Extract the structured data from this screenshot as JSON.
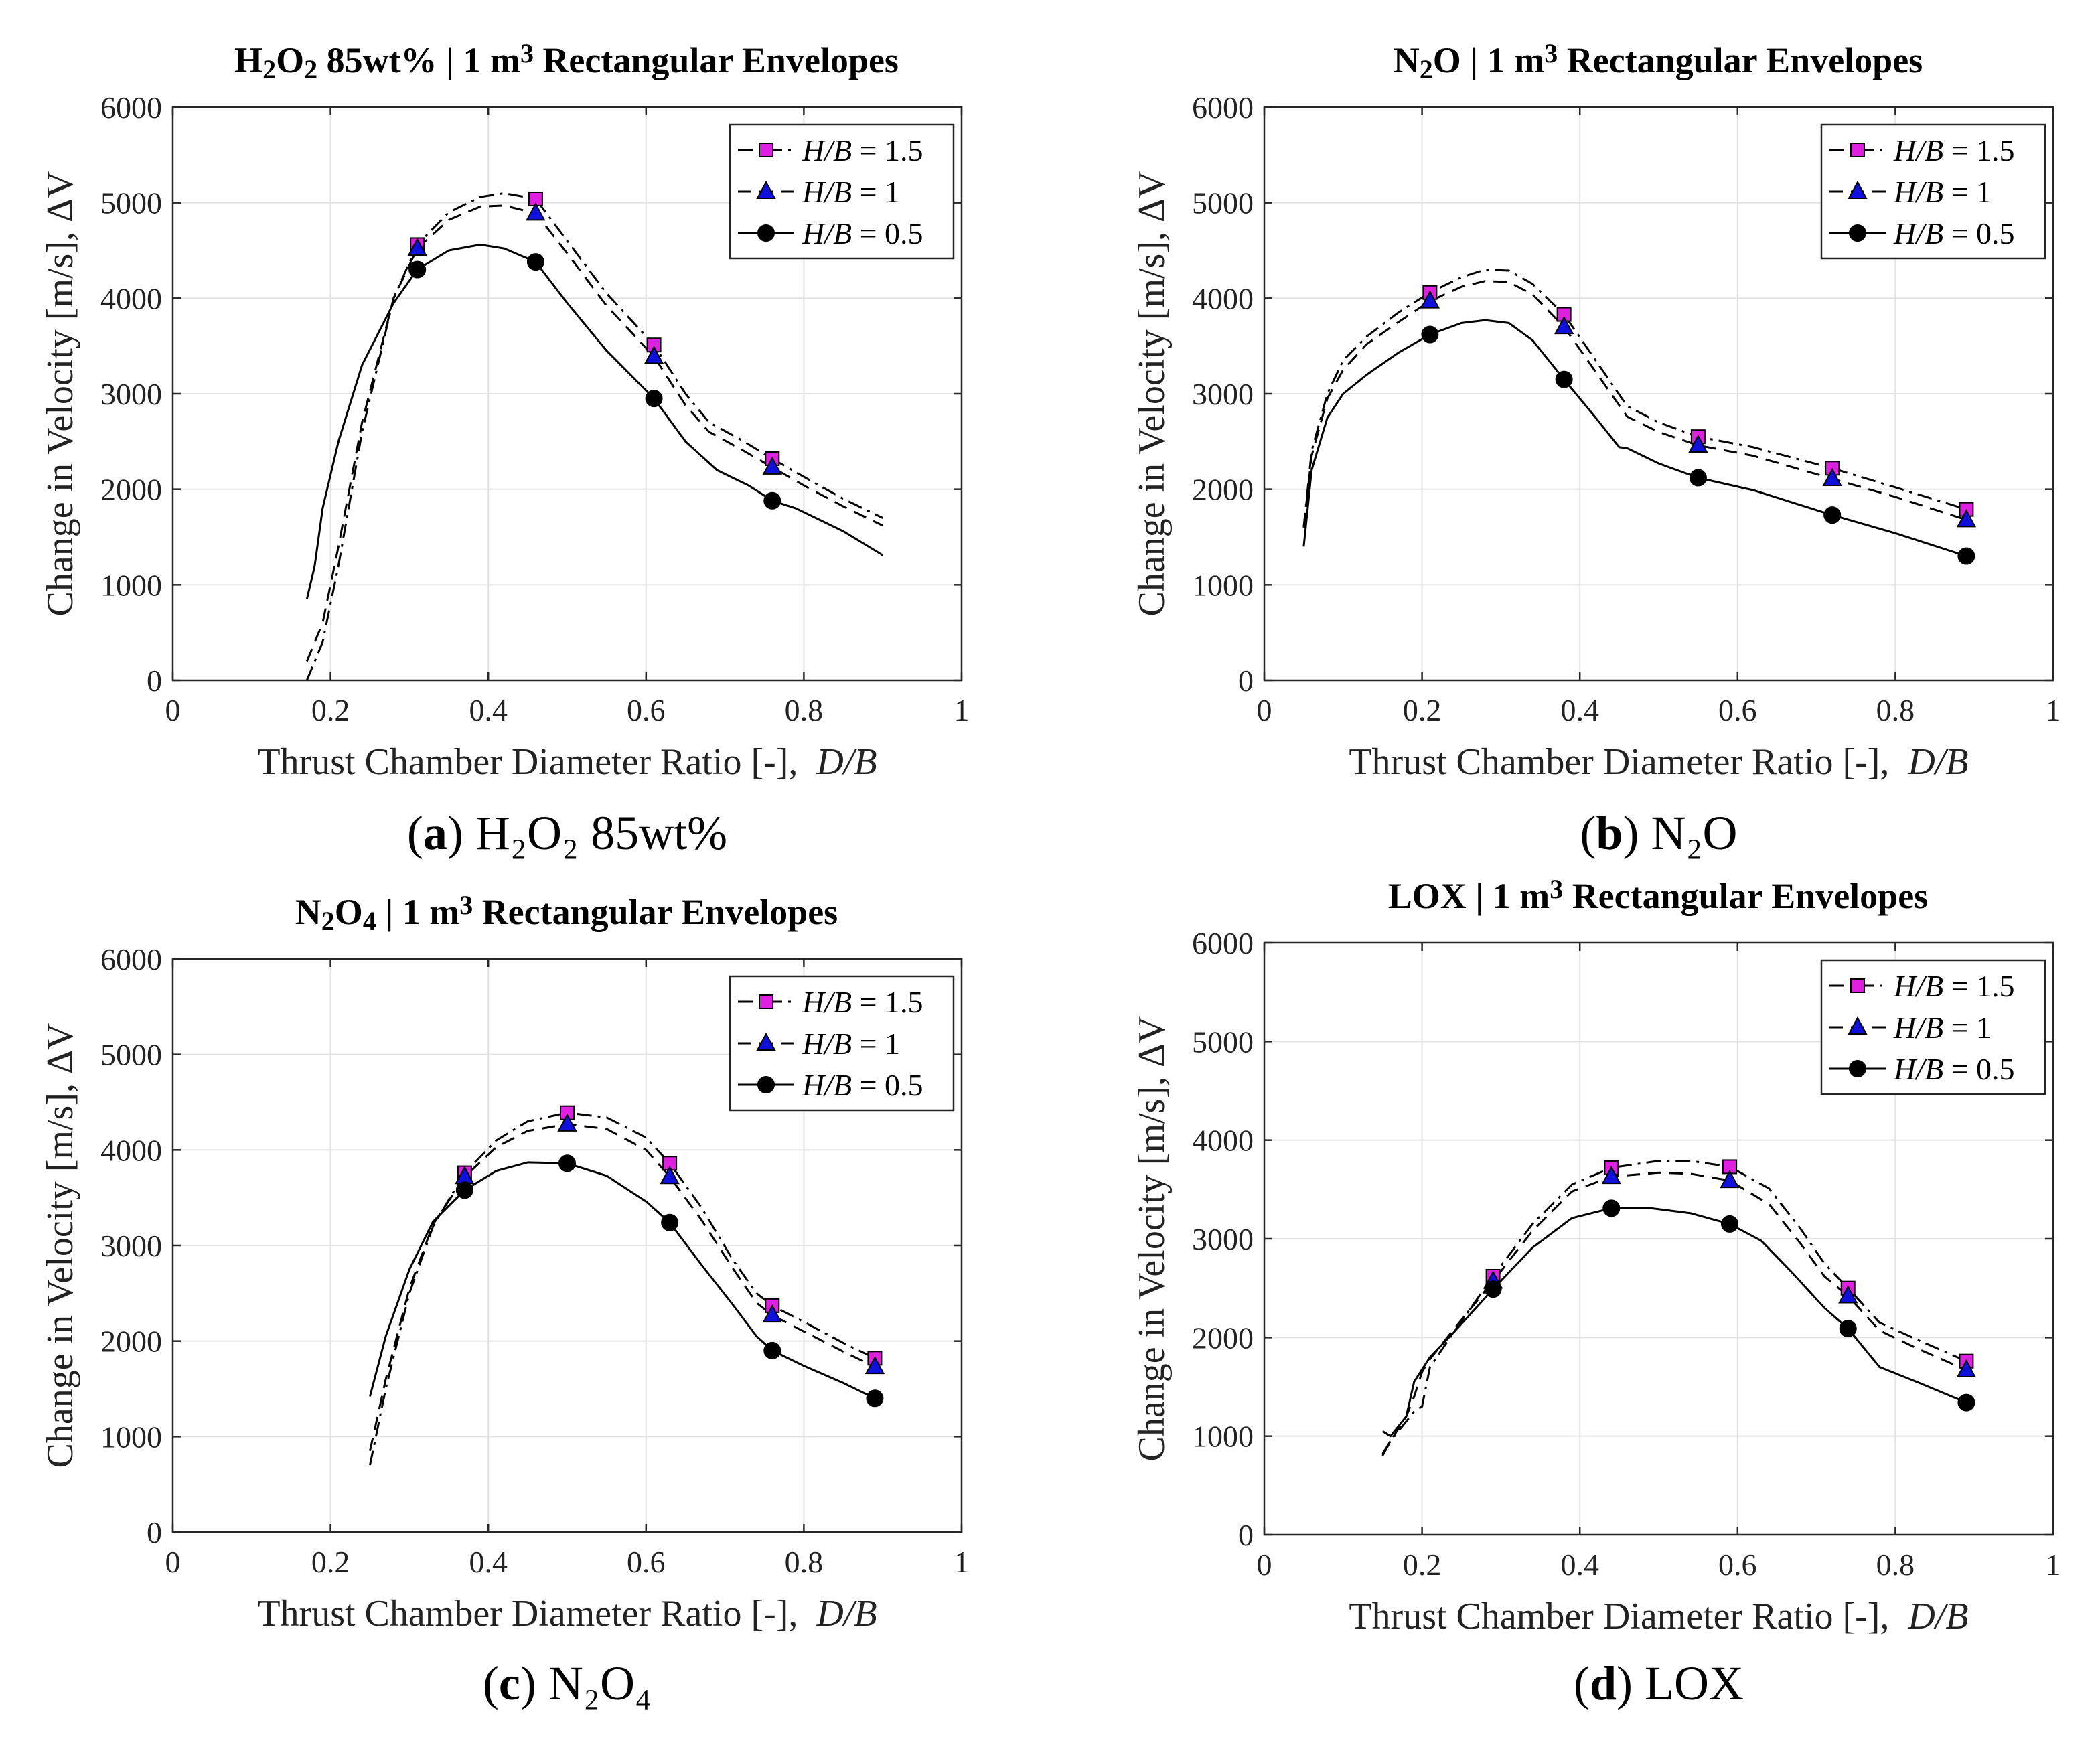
{
  "figure": {
    "axis_xlabel_text": "Thrust Chamber Diameter Ratio [-],",
    "axis_xlabel_var": "D/B",
    "axis_ylabel": "Change in Velocity [m/s],",
    "axis_ylabel_sym": "ΔV",
    "legend": [
      {
        "var": "H/B",
        "rest": " = 1.5",
        "marker": "square",
        "dash": "dashdot",
        "color": "#e020e0"
      },
      {
        "var": "H/B",
        "rest": " = 1",
        "marker": "triangle",
        "dash": "dashed",
        "color": "#1010dd"
      },
      {
        "var": "H/B",
        "rest": " = 0.5",
        "marker": "circle",
        "dash": "solid",
        "color": "#000000"
      }
    ]
  },
  "chart_data": [
    {
      "type": "line",
      "title": {
        "parts": [
          [
            "H",
            false
          ],
          [
            "2",
            true
          ],
          [
            "O",
            false
          ],
          [
            "2",
            true
          ],
          [
            " 85wt% | 1 m",
            false
          ],
          [
            "3",
            "sup"
          ],
          [
            " Rectangular Envelopes",
            false
          ]
        ]
      },
      "caption": {
        "letter": "a",
        "text": " H₂O₂ 85wt%"
      },
      "xlim": [
        0,
        1
      ],
      "ylim": [
        0,
        6000
      ],
      "xticks": [
        "0",
        "0.2",
        "0.4",
        "0.6",
        "0.8",
        "1"
      ],
      "yticks": [
        "0",
        "1000",
        "2000",
        "3000",
        "4000",
        "5000",
        "6000"
      ],
      "series": [
        {
          "name": "H/B = 1.5",
          "x": [
            0.17,
            0.19,
            0.21,
            0.24,
            0.28,
            0.31,
            0.35,
            0.39,
            0.42,
            0.46,
            0.5,
            0.55,
            0.61,
            0.65,
            0.68,
            0.72,
            0.76,
            0.8,
            0.85,
            0.9
          ],
          "y": [
            0,
            400,
            1200,
            2600,
            4000,
            4560,
            4900,
            5060,
            5100,
            5040,
            4600,
            4050,
            3510,
            3000,
            2700,
            2520,
            2320,
            2130,
            1900,
            1700
          ],
          "markers": [
            [
              0.31,
              4560
            ],
            [
              0.46,
              5040
            ],
            [
              0.61,
              3510
            ],
            [
              0.76,
              2320
            ]
          ]
        },
        {
          "name": "H/B = 1",
          "x": [
            0.17,
            0.19,
            0.21,
            0.24,
            0.28,
            0.31,
            0.35,
            0.39,
            0.42,
            0.46,
            0.5,
            0.55,
            0.61,
            0.65,
            0.68,
            0.72,
            0.76,
            0.8,
            0.85,
            0.9
          ],
          "y": [
            200,
            600,
            1400,
            2700,
            4000,
            4520,
            4820,
            4960,
            4970,
            4890,
            4470,
            3920,
            3390,
            2880,
            2600,
            2420,
            2230,
            2040,
            1820,
            1620
          ],
          "markers": [
            [
              0.31,
              4520
            ],
            [
              0.46,
              4890
            ],
            [
              0.61,
              3390
            ],
            [
              0.76,
              2230
            ]
          ]
        },
        {
          "name": "H/B = 0.5",
          "x": [
            0.17,
            0.18,
            0.19,
            0.21,
            0.24,
            0.28,
            0.31,
            0.35,
            0.39,
            0.42,
            0.46,
            0.5,
            0.55,
            0.61,
            0.65,
            0.69,
            0.73,
            0.76,
            0.79,
            0.85,
            0.9
          ],
          "y": [
            850,
            1200,
            1800,
            2500,
            3300,
            3950,
            4300,
            4500,
            4560,
            4520,
            4380,
            3950,
            3450,
            2950,
            2500,
            2200,
            2040,
            1880,
            1800,
            1560,
            1310
          ],
          "markers": [
            [
              0.31,
              4300
            ],
            [
              0.46,
              4380
            ],
            [
              0.61,
              2950
            ],
            [
              0.76,
              1880
            ]
          ]
        }
      ]
    },
    {
      "type": "line",
      "title": {
        "parts": [
          [
            "N",
            false
          ],
          [
            "2",
            true
          ],
          [
            "O | 1 m",
            false
          ],
          [
            "3",
            "sup"
          ],
          [
            " Rectangular Envelopes",
            false
          ]
        ]
      },
      "caption": {
        "letter": "b",
        "text": " N₂O"
      },
      "xlim": [
        0,
        1
      ],
      "ylim": [
        0,
        6000
      ],
      "xticks": [
        "0",
        "0.2",
        "0.4",
        "0.6",
        "0.8",
        "1"
      ],
      "yticks": [
        "0",
        "1000",
        "2000",
        "3000",
        "4000",
        "5000",
        "6000"
      ],
      "series": [
        {
          "name": "H/B = 1.5",
          "x": [
            0.05,
            0.06,
            0.08,
            0.1,
            0.13,
            0.17,
            0.21,
            0.25,
            0.28,
            0.31,
            0.34,
            0.38,
            0.42,
            0.46,
            0.5,
            0.55,
            0.62,
            0.72,
            0.8,
            0.89
          ],
          "y": [
            1600,
            2400,
            3000,
            3350,
            3600,
            3850,
            4060,
            4220,
            4300,
            4290,
            4150,
            3830,
            3350,
            2870,
            2700,
            2550,
            2440,
            2220,
            2020,
            1790
          ],
          "markers": [
            [
              0.21,
              4060
            ],
            [
              0.38,
              3830
            ],
            [
              0.55,
              2550
            ],
            [
              0.72,
              2220
            ],
            [
              0.89,
              1790
            ]
          ]
        },
        {
          "name": "H/B = 1",
          "x": [
            0.05,
            0.06,
            0.08,
            0.1,
            0.13,
            0.17,
            0.21,
            0.25,
            0.28,
            0.31,
            0.34,
            0.38,
            0.42,
            0.46,
            0.5,
            0.55,
            0.62,
            0.72,
            0.8,
            0.89
          ],
          "y": [
            1600,
            2350,
            2950,
            3250,
            3520,
            3750,
            3970,
            4120,
            4180,
            4170,
            4040,
            3700,
            3230,
            2760,
            2600,
            2460,
            2350,
            2110,
            1920,
            1680
          ],
          "markers": [
            [
              0.21,
              3970
            ],
            [
              0.38,
              3700
            ],
            [
              0.55,
              2460
            ],
            [
              0.72,
              2110
            ],
            [
              0.89,
              1680
            ]
          ]
        },
        {
          "name": "H/B = 0.5",
          "x": [
            0.05,
            0.06,
            0.08,
            0.1,
            0.13,
            0.17,
            0.21,
            0.25,
            0.28,
            0.31,
            0.34,
            0.38,
            0.42,
            0.45,
            0.46,
            0.5,
            0.55,
            0.62,
            0.72,
            0.8,
            0.89
          ],
          "y": [
            1400,
            2200,
            2750,
            3000,
            3200,
            3430,
            3620,
            3740,
            3770,
            3740,
            3560,
            3150,
            2750,
            2440,
            2430,
            2270,
            2120,
            1990,
            1730,
            1540,
            1300
          ],
          "markers": [
            [
              0.21,
              3620
            ],
            [
              0.38,
              3150
            ],
            [
              0.55,
              2120
            ],
            [
              0.72,
              1730
            ],
            [
              0.89,
              1300
            ]
          ]
        }
      ]
    },
    {
      "type": "line",
      "title": {
        "parts": [
          [
            "N",
            false
          ],
          [
            "2",
            true
          ],
          [
            "O",
            false
          ],
          [
            "4",
            true
          ],
          [
            " | 1 m",
            false
          ],
          [
            "3",
            "sup"
          ],
          [
            " Rectangular Envelopes",
            false
          ]
        ]
      },
      "caption": {
        "letter": "c",
        "text": " N₂O₄"
      },
      "xlim": [
        0,
        1
      ],
      "ylim": [
        0,
        6000
      ],
      "xticks": [
        "0",
        "0.2",
        "0.4",
        "0.6",
        "0.8",
        "1"
      ],
      "yticks": [
        "0",
        "1000",
        "2000",
        "3000",
        "4000",
        "5000",
        "6000"
      ],
      "series": [
        {
          "name": "H/B = 1.5",
          "x": [
            0.25,
            0.27,
            0.3,
            0.33,
            0.37,
            0.41,
            0.45,
            0.5,
            0.55,
            0.6,
            0.63,
            0.67,
            0.71,
            0.74,
            0.76,
            0.8,
            0.85,
            0.89
          ],
          "y": [
            700,
            1500,
            2500,
            3200,
            3760,
            4100,
            4300,
            4390,
            4340,
            4130,
            3860,
            3400,
            2850,
            2500,
            2370,
            2200,
            1980,
            1820
          ],
          "markers": [
            [
              0.37,
              3760
            ],
            [
              0.5,
              4390
            ],
            [
              0.63,
              3860
            ],
            [
              0.76,
              2370
            ],
            [
              0.89,
              1820
            ]
          ]
        },
        {
          "name": "H/B = 1",
          "x": [
            0.25,
            0.27,
            0.3,
            0.33,
            0.37,
            0.41,
            0.45,
            0.5,
            0.55,
            0.6,
            0.63,
            0.67,
            0.71,
            0.74,
            0.76,
            0.8,
            0.85,
            0.89
          ],
          "y": [
            850,
            1600,
            2550,
            3220,
            3720,
            4030,
            4200,
            4270,
            4220,
            4000,
            3720,
            3270,
            2760,
            2400,
            2270,
            2100,
            1890,
            1730
          ],
          "markers": [
            [
              0.37,
              3720
            ],
            [
              0.5,
              4270
            ],
            [
              0.63,
              3720
            ],
            [
              0.76,
              2270
            ],
            [
              0.89,
              1730
            ]
          ]
        },
        {
          "name": "H/B = 0.5",
          "x": [
            0.25,
            0.27,
            0.3,
            0.33,
            0.37,
            0.41,
            0.45,
            0.5,
            0.55,
            0.6,
            0.63,
            0.67,
            0.71,
            0.74,
            0.76,
            0.8,
            0.85,
            0.89
          ],
          "y": [
            1420,
            2050,
            2750,
            3250,
            3580,
            3780,
            3870,
            3860,
            3730,
            3460,
            3240,
            2800,
            2380,
            2050,
            1900,
            1740,
            1560,
            1400
          ],
          "markers": [
            [
              0.37,
              3580
            ],
            [
              0.5,
              3860
            ],
            [
              0.63,
              3240
            ],
            [
              0.76,
              1900
            ],
            [
              0.89,
              1400
            ]
          ]
        }
      ]
    },
    {
      "type": "line",
      "title": {
        "parts": [
          [
            "LOX | 1 m",
            false
          ],
          [
            "3",
            "sup"
          ],
          [
            " Rectangular Envelopes",
            false
          ]
        ]
      },
      "caption": {
        "letter": "d",
        "text": " LOX"
      },
      "xlim": [
        0,
        1
      ],
      "ylim": [
        0,
        6000
      ],
      "xticks": [
        "0",
        "0.2",
        "0.4",
        "0.6",
        "0.8",
        "1"
      ],
      "yticks": [
        "0",
        "1000",
        "2000",
        "3000",
        "4000",
        "5000",
        "6000"
      ],
      "series": [
        {
          "name": "H/B = 1.5",
          "x": [
            0.15,
            0.16,
            0.18,
            0.19,
            0.2,
            0.21,
            0.24,
            0.29,
            0.34,
            0.39,
            0.44,
            0.5,
            0.54,
            0.59,
            0.64,
            0.68,
            0.71,
            0.74,
            0.78,
            0.83,
            0.89
          ],
          "y": [
            820,
            950,
            1150,
            1250,
            1300,
            1700,
            2050,
            2620,
            3150,
            3550,
            3720,
            3790,
            3790,
            3730,
            3510,
            3100,
            2750,
            2500,
            2150,
            1970,
            1760
          ],
          "markers": [
            [
              0.29,
              2620
            ],
            [
              0.44,
              3720
            ],
            [
              0.59,
              3730
            ],
            [
              0.74,
              2500
            ],
            [
              0.89,
              1760
            ]
          ]
        },
        {
          "name": "H/B = 1",
          "x": [
            0.15,
            0.16,
            0.18,
            0.19,
            0.2,
            0.21,
            0.24,
            0.29,
            0.34,
            0.39,
            0.44,
            0.5,
            0.54,
            0.59,
            0.64,
            0.68,
            0.71,
            0.74,
            0.78,
            0.83,
            0.89
          ],
          "y": [
            800,
            950,
            1200,
            1400,
            1650,
            1780,
            2080,
            2570,
            3080,
            3480,
            3630,
            3670,
            3660,
            3590,
            3350,
            2950,
            2620,
            2420,
            2070,
            1880,
            1670
          ],
          "markers": [
            [
              0.29,
              2570
            ],
            [
              0.44,
              3630
            ],
            [
              0.59,
              3590
            ],
            [
              0.74,
              2420
            ],
            [
              0.89,
              1670
            ]
          ]
        },
        {
          "name": "H/B = 0.5",
          "x": [
            0.15,
            0.16,
            0.18,
            0.19,
            0.21,
            0.24,
            0.29,
            0.34,
            0.39,
            0.44,
            0.49,
            0.54,
            0.59,
            0.63,
            0.67,
            0.71,
            0.74,
            0.78,
            0.83,
            0.89
          ],
          "y": [
            1050,
            1000,
            1200,
            1550,
            1800,
            2050,
            2490,
            2910,
            3210,
            3310,
            3310,
            3260,
            3150,
            2980,
            2650,
            2300,
            2090,
            1700,
            1540,
            1340
          ],
          "markers": [
            [
              0.29,
              2490
            ],
            [
              0.44,
              3310
            ],
            [
              0.59,
              3150
            ],
            [
              0.74,
              2090
            ],
            [
              0.89,
              1340
            ]
          ]
        }
      ]
    }
  ]
}
